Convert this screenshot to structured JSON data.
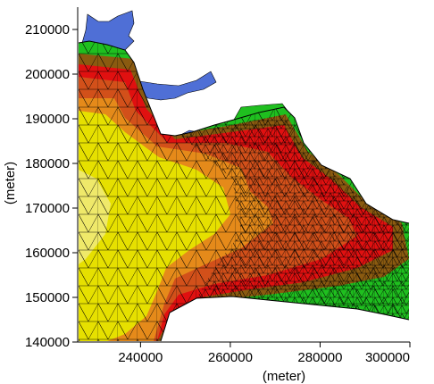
{
  "chart_data": {
    "type": "heatmap",
    "subtype": "contour-map-with-triangular-mesh",
    "title": "",
    "xlabel": "(meter)",
    "ylabel": "(meter)",
    "xlim": [
      226000,
      300000
    ],
    "ylim": [
      140000,
      214000
    ],
    "x_ticks": [
      240000,
      260000,
      280000,
      300000
    ],
    "y_ticks": [
      140000,
      150000,
      160000,
      170000,
      180000,
      190000,
      200000,
      210000
    ],
    "x_tick_labels": [
      "240000",
      "260000",
      "280000",
      "300000"
    ],
    "y_tick_labels": [
      "140000",
      "150000",
      "160000",
      "170000",
      "180000",
      "190000",
      "200000",
      "210000"
    ],
    "grid": false,
    "legend": "none",
    "color_bands": [
      "#4f6fd6",
      "#1fbf1f",
      "#8a5a10",
      "#d2501a",
      "#e58a1a",
      "#e6e000"
    ],
    "mesh_color": "#000000",
    "background_land": "#ffffff"
  }
}
